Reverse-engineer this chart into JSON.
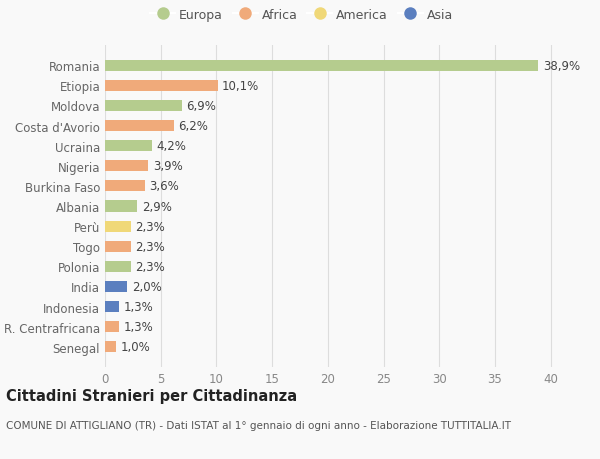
{
  "countries": [
    "Romania",
    "Etiopia",
    "Moldova",
    "Costa d'Avorio",
    "Ucraina",
    "Nigeria",
    "Burkina Faso",
    "Albania",
    "Perù",
    "Togo",
    "Polonia",
    "India",
    "Indonesia",
    "R. Centrafricana",
    "Senegal"
  ],
  "values": [
    38.9,
    10.1,
    6.9,
    6.2,
    4.2,
    3.9,
    3.6,
    2.9,
    2.3,
    2.3,
    2.3,
    2.0,
    1.3,
    1.3,
    1.0
  ],
  "labels": [
    "38,9%",
    "10,1%",
    "6,9%",
    "6,2%",
    "4,2%",
    "3,9%",
    "3,6%",
    "2,9%",
    "2,3%",
    "2,3%",
    "2,3%",
    "2,0%",
    "1,3%",
    "1,3%",
    "1,0%"
  ],
  "continents": [
    "Europa",
    "Africa",
    "Europa",
    "Africa",
    "Europa",
    "Africa",
    "Africa",
    "Europa",
    "America",
    "Africa",
    "Europa",
    "Asia",
    "Asia",
    "Africa",
    "Africa"
  ],
  "colors": {
    "Europa": "#b5cc8e",
    "Africa": "#f0aa7a",
    "America": "#f0d878",
    "Asia": "#5b7fbf"
  },
  "legend_order": [
    "Europa",
    "Africa",
    "America",
    "Asia"
  ],
  "xlim": [
    0,
    42
  ],
  "xticks": [
    0,
    5,
    10,
    15,
    20,
    25,
    30,
    35,
    40
  ],
  "title": "Cittadini Stranieri per Cittadinanza",
  "subtitle": "COMUNE DI ATTIGLIANO (TR) - Dati ISTAT al 1° gennaio di ogni anno - Elaborazione TUTTITALIA.IT",
  "bg_color": "#f9f9f9",
  "grid_color": "#dddddd",
  "bar_height": 0.55,
  "label_fontsize": 8.5,
  "tick_fontsize": 8.5,
  "title_fontsize": 10.5,
  "subtitle_fontsize": 7.5
}
